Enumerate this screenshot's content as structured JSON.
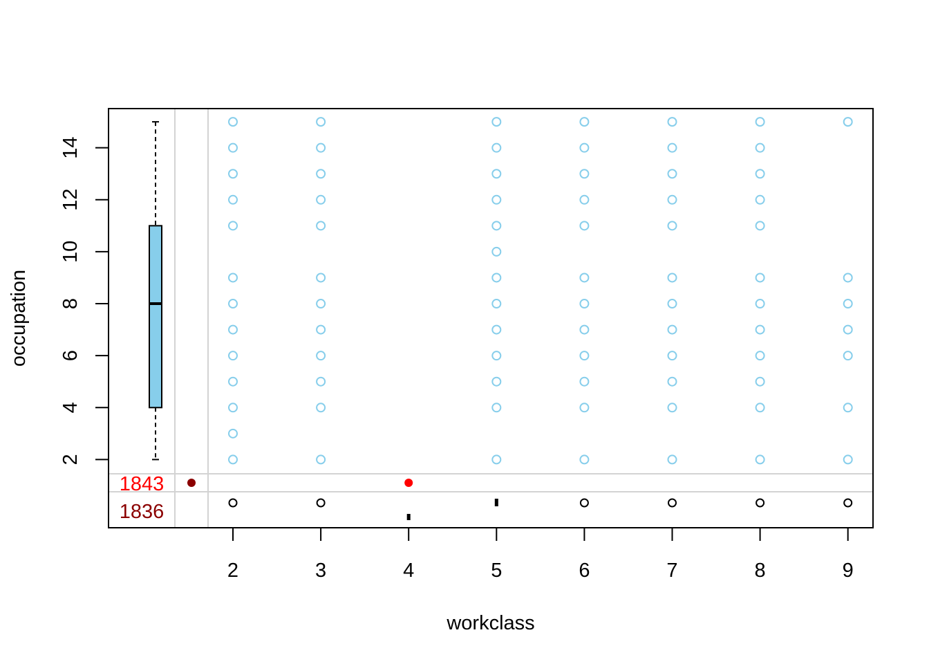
{
  "chart_data": {
    "type": "scatter",
    "title": "",
    "xlabel": "workclass",
    "ylabel": "occupation",
    "x_ticks": [
      "2",
      "3",
      "4",
      "5",
      "6",
      "7",
      "8",
      "9"
    ],
    "y_ticks": [
      "2",
      "4",
      "6",
      "8",
      "10",
      "12",
      "14"
    ],
    "xlim": [
      0.62,
      9.35
    ],
    "ylim": [
      1.5,
      15.5
    ],
    "grid": false,
    "legend": "none",
    "colors": {
      "points": "#87ceeb",
      "boxplot_fill": "#87ceeb",
      "missing_x_label": "#ff0000",
      "missing_y_label": "#8b0000",
      "missing_point_dark": "#8b0000",
      "missing_point_red": "#ff0000",
      "divider": "#d3d3d3"
    },
    "series": [
      {
        "x": 2,
        "y": [
          2,
          3,
          4,
          5,
          6,
          7,
          8,
          9,
          11,
          12,
          13,
          14,
          15
        ]
      },
      {
        "x": 3,
        "y": [
          2,
          4,
          5,
          6,
          7,
          8,
          9,
          11,
          12,
          13,
          14,
          15
        ]
      },
      {
        "x": 5,
        "y": [
          2,
          4,
          5,
          6,
          7,
          8,
          9,
          10,
          11,
          12,
          13,
          14,
          15
        ]
      },
      {
        "x": 6,
        "y": [
          2,
          4,
          5,
          6,
          7,
          8,
          9,
          11,
          12,
          13,
          14,
          15
        ]
      },
      {
        "x": 7,
        "y": [
          2,
          4,
          5,
          6,
          7,
          8,
          9,
          11,
          12,
          13,
          14,
          15
        ]
      },
      {
        "x": 8,
        "y": [
          2,
          4,
          5,
          6,
          7,
          8,
          9,
          11,
          12,
          13,
          14,
          15
        ]
      },
      {
        "x": 9,
        "y": [
          2,
          4,
          6,
          7,
          8,
          9,
          15
        ]
      }
    ],
    "boxplot_occupation": {
      "min": 2,
      "q1": 4,
      "median": 8,
      "q3": 11,
      "max": 15
    },
    "missing": {
      "workclass_missing_count": "1843",
      "occupation_missing_count": "1836",
      "both_missing_point": true,
      "occupation_missing_at_workclass": [
        4
      ],
      "rug_x": [
        2,
        3,
        4,
        5,
        6,
        7,
        8,
        9
      ]
    }
  }
}
